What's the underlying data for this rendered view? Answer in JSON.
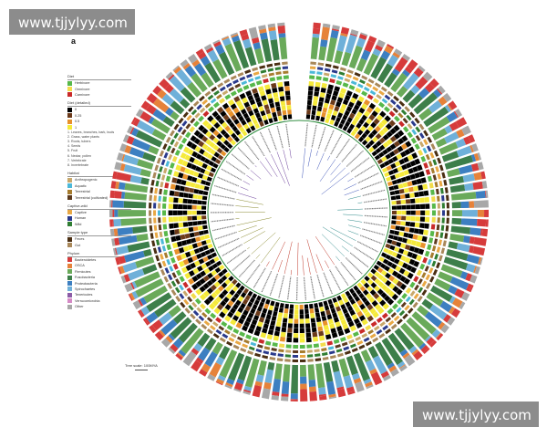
{
  "watermark_text": "www.tjjylyy.com",
  "panel_label": "a",
  "legend": {
    "diet": {
      "title": "Diet",
      "items": [
        {
          "label": "Herbivore",
          "color": "#57b84a"
        },
        {
          "label": "Omnivore",
          "color": "#f2dc4b"
        },
        {
          "label": "Carnivore",
          "color": "#c92a2a"
        }
      ]
    },
    "diet_detailed": {
      "title": "Diet (detailed)",
      "items": [
        {
          "label": "0",
          "color": "#000000"
        },
        {
          "label": "0.25",
          "color": "#6b3a1a"
        },
        {
          "label": "0.5",
          "color": "#e8912b"
        },
        {
          "label": "1",
          "color": "#f5ea3a"
        }
      ],
      "notes": [
        "1. Leaves, branches, bark, buds",
        "2. Grass, water plants",
        "3. Roots, tubers",
        "4. Seeds",
        "5. Fruit",
        "6. Nectar, pollen",
        "7. Vertebrate",
        "8. Invertebrate"
      ]
    },
    "habitat": {
      "title": "Habitat",
      "items": [
        {
          "label": "Anthropogenic",
          "color": "#c8a86b"
        },
        {
          "label": "Aquatic",
          "color": "#4cb8d8"
        },
        {
          "label": "Terrestrial",
          "color": "#a67c2e"
        },
        {
          "label": "Terrestrial (cultivated)",
          "color": "#5c3a1e"
        }
      ]
    },
    "captive_wild": {
      "title": "Captive-wild",
      "items": [
        {
          "label": "Captive",
          "color": "#e8a845"
        },
        {
          "label": "Human",
          "color": "#2a3a8c"
        },
        {
          "label": "Wild",
          "color": "#2f7d32"
        }
      ]
    },
    "sample_type": {
      "title": "Sample type",
      "items": [
        {
          "label": "Feces",
          "color": "#4a2e12"
        },
        {
          "label": "Gut",
          "color": "#a9885a"
        }
      ]
    },
    "phylum": {
      "title": "Phylum",
      "items": [
        {
          "label": "Bacteroidetes",
          "color": "#d63b3b"
        },
        {
          "label": "OSCA",
          "color": "#e6823a"
        },
        {
          "label": "Firmicutes",
          "color": "#6aaa5a"
        },
        {
          "label": "Fusobacteria",
          "color": "#3d7f4a"
        },
        {
          "label": "Proteobacteria",
          "color": "#3d7fc1"
        },
        {
          "label": "Spirochaetes",
          "color": "#6fb0d9"
        },
        {
          "label": "Tenericutes",
          "color": "#8c5ba6"
        },
        {
          "label": "Verrucomicrobia",
          "color": "#d58ac6"
        },
        {
          "label": "Other",
          "color": "#a8a8a8"
        }
      ]
    }
  },
  "tree_scale": "Tree scale: 100MYA"
}
